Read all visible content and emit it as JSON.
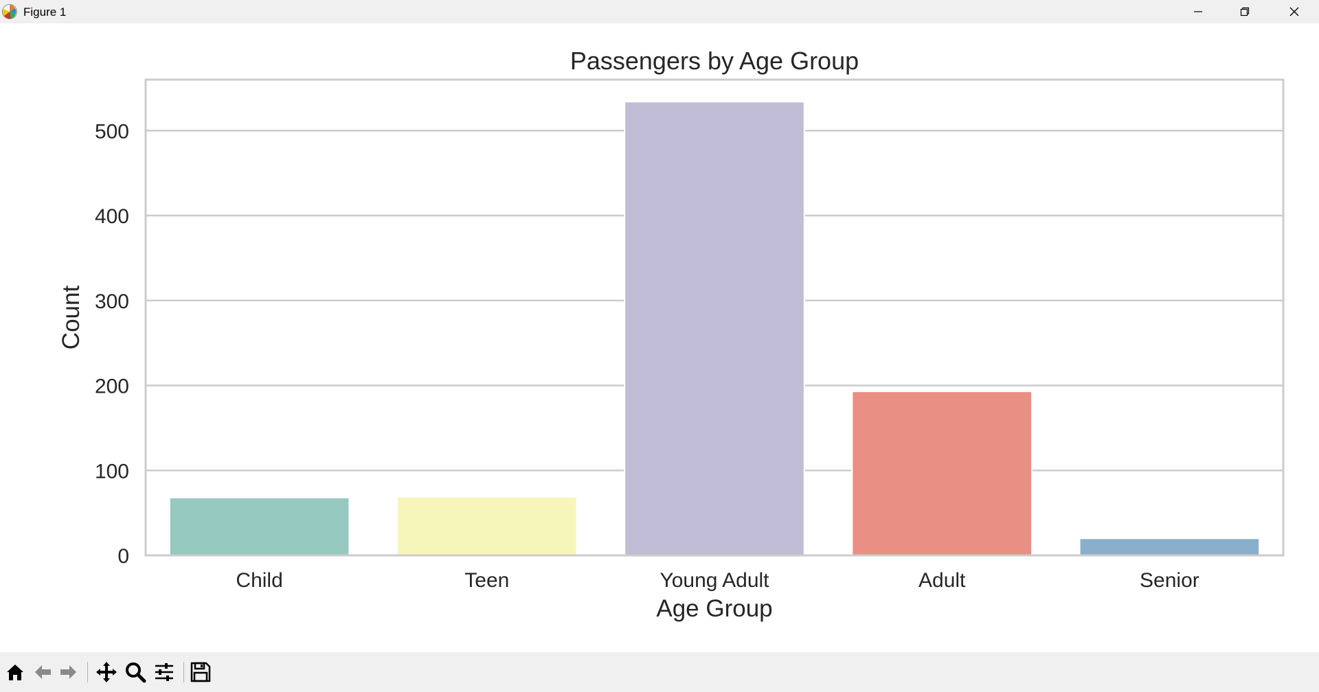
{
  "window": {
    "title": "Figure 1"
  },
  "toolbar": {
    "items": [
      "home-icon",
      "back-arrow-icon",
      "forward-arrow-icon",
      "pan-icon",
      "zoom-icon",
      "configure-subplots-icon",
      "save-icon"
    ]
  },
  "colors": {
    "bars": [
      "#96c9c0",
      "#f6f6bb",
      "#c1bdd6",
      "#ea8f83",
      "#8aafcb"
    ],
    "grid": "#cccccc",
    "text": "#262626"
  },
  "chart_data": {
    "type": "bar",
    "title": "Passengers by Age Group",
    "xlabel": "Age Group",
    "ylabel": "Count",
    "categories": [
      "Child",
      "Teen",
      "Young Adult",
      "Adult",
      "Senior"
    ],
    "values": [
      68,
      69,
      534,
      193,
      20
    ],
    "ylim": [
      0,
      560
    ],
    "yticks": [
      0,
      100,
      200,
      300,
      400,
      500
    ],
    "grid": "horizontal"
  }
}
